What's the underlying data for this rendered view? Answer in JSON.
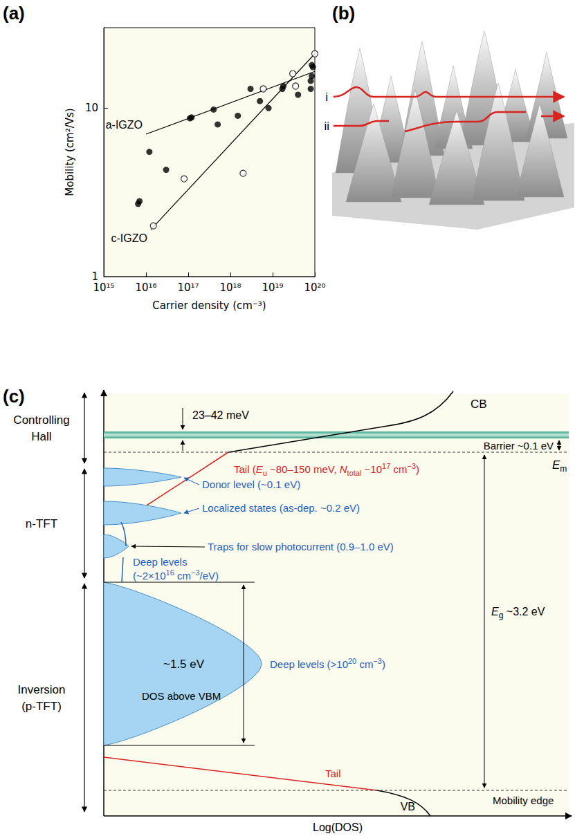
{
  "chart_data": {
    "type": "scatter",
    "panel_label": "(a)",
    "x_label": "Carrier density (cm⁻³)",
    "y_label": "Mobility (cm²/Vs)",
    "log": true,
    "grid": false,
    "xlim": [
      1000000000000000.0,
      1e+20
    ],
    "xticks": [
      {
        "value": 1000000000000000.0,
        "label": "10¹⁵"
      },
      {
        "value": 1e+16,
        "label": "10¹⁶"
      },
      {
        "value": 1e+17,
        "label": "10¹⁷"
      },
      {
        "value": 1e+18,
        "label": "10¹⁸"
      },
      {
        "value": 1e+19,
        "label": "10¹⁹"
      },
      {
        "value": 1e+20,
        "label": "10²⁰"
      }
    ],
    "ylim": [
      1,
      30
    ],
    "yticks": [
      1,
      10
    ],
    "series": [
      {
        "type": "scatter",
        "marker": "circle",
        "color": "#000000",
        "x": [
          6500000000000000.0,
          7000000000000000.0,
          1.2e+16,
          3e+16,
          1.1e+17,
          1.2e+17,
          4e+17,
          5e+17,
          1.5e+18,
          3e+18,
          5e+18,
          8e+18,
          1.7e+19,
          1.8e+19,
          4e+19,
          8e+19,
          8e+19,
          8.5e+19,
          8.5e+19,
          9e+19
        ],
        "values": [
          2.7,
          2.8,
          5.5,
          4.3,
          8.7,
          8.8,
          9.8,
          8,
          9,
          13,
          11,
          10,
          13,
          13.5,
          12,
          13,
          14.5,
          15.5,
          18,
          17.5
        ]
      },
      {
        "type": "scatter",
        "marker": "open_circle",
        "color": "#000000",
        "x": [
          1.5e+16,
          8e+16,
          2e+18,
          6e+18,
          3e+19,
          3.5e+19,
          1e+20
        ],
        "values": [
          2,
          3.8,
          4.1,
          13,
          16,
          13.5,
          21
        ]
      },
      {
        "name": "a-IGZO",
        "type": "line",
        "line_style": "solid",
        "color": "#000000",
        "x": [
          1e+16,
          1e+20
        ],
        "values": [
          7,
          16.5
        ]
      },
      {
        "name": "c-IGZO",
        "type": "line",
        "line_style": "solid",
        "color": "#000000",
        "x": [
          1.3e+16,
          1e+20
        ],
        "values": [
          1.9,
          21
        ]
      }
    ]
  },
  "landscape": {
    "panel_label": "(b)",
    "path_labels": [
      "i",
      "ii"
    ]
  },
  "energy_diagram": {
    "panel_label": "(c)",
    "x_axis_label": "Log(DOS)",
    "regions": [
      "Controlling Hall",
      "n-TFT",
      "Inversion (p-TFT)"
    ],
    "band_width_label": "23–42 meV",
    "cb_label": "CB",
    "barrier_label": "Barrier ~0.1 eV",
    "cb_mobility_edge_label": [
      {
        "i": "E",
        "sub": "m"
      }
    ],
    "gap_label": [
      {
        "i": "E",
        "sub": "g"
      },
      " ~3.2 eV"
    ],
    "cb_tail_label": [
      "Tail (",
      {
        "i": "E",
        "sub": "u"
      },
      " ~80–150 meV, ",
      {
        "i": "N",
        "sub": "total"
      },
      " ~10",
      {
        "sup": "17"
      },
      " cm",
      {
        "sup": "−3"
      },
      ")"
    ],
    "donor_label": "Donor level (~0.1 eV)",
    "localized_label": "Localized states (as-dep. ~0.2 eV)",
    "traps_label": "Traps for slow photocurrent (0.9–1.0 eV)",
    "deep_line_label": [
      "Deep levels",
      [
        "(~2×10",
        {
          "sup": "16"
        },
        " cm",
        {
          "sup": "−3"
        },
        "/eV)"
      ]
    ],
    "deep_width_label": "~1.5 eV",
    "deep_lobe_label": [
      "Deep levels (>10",
      {
        "sup": "20"
      },
      " cm",
      {
        "sup": "−3"
      },
      ")"
    ],
    "dos_label": "DOS above VBM",
    "vb_tail_label": "Tail",
    "vb_mobility_edge_label": "Mobility edge",
    "vb_label": "VB"
  }
}
